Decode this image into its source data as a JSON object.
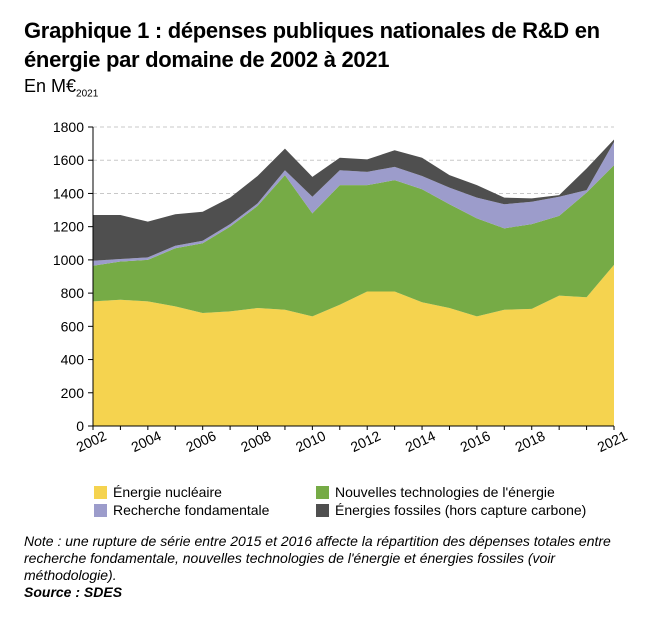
{
  "title": "Graphique 1 : dépenses publiques nationales de R&D en énergie par domaine de 2002 à 2021",
  "unit": "En M€",
  "unit_sub": "2021",
  "chart_data": {
    "type": "area",
    "stacked": true,
    "x": [
      2002,
      2003,
      2004,
      2005,
      2006,
      2007,
      2008,
      2009,
      2010,
      2011,
      2012,
      2013,
      2014,
      2015,
      2016,
      2017,
      2018,
      2019,
      2020,
      2021
    ],
    "x_tick_labels": [
      "2002",
      "2004",
      "2006",
      "2008",
      "2010",
      "2012",
      "2014",
      "2016",
      "2018",
      "2021"
    ],
    "ylim": [
      0,
      1800
    ],
    "y_ticks": [
      0,
      200,
      400,
      600,
      800,
      1000,
      1200,
      1400,
      1600,
      1800
    ],
    "grid": "horizontal dashed",
    "legend_position": "bottom",
    "series": [
      {
        "name": "Énergie nucléaire",
        "color": "#f5d34f",
        "values": [
          750,
          760,
          750,
          720,
          680,
          690,
          710,
          700,
          660,
          730,
          810,
          810,
          745,
          710,
          660,
          700,
          705,
          785,
          775,
          970
        ]
      },
      {
        "name": "Nouvelles technologies de l'énergie",
        "color": "#76ab46",
        "values": [
          215,
          230,
          250,
          350,
          420,
          510,
          615,
          810,
          620,
          720,
          640,
          670,
          680,
          625,
          590,
          490,
          510,
          480,
          630,
          600
        ]
      },
      {
        "name": "Recherche fondamentale",
        "color": "#9c9ccb",
        "values": [
          30,
          15,
          15,
          15,
          15,
          15,
          15,
          30,
          100,
          90,
          80,
          80,
          80,
          100,
          125,
          145,
          135,
          115,
          15,
          140
        ]
      },
      {
        "name": "Énergies fossiles (hors capture carbone)",
        "color": "#4f4f4f",
        "values": [
          275,
          265,
          215,
          190,
          175,
          160,
          165,
          130,
          120,
          75,
          75,
          100,
          110,
          75,
          75,
          40,
          20,
          10,
          130,
          15
        ]
      }
    ]
  },
  "note_label": "Note :",
  "note_text": "une rupture de série entre 2015 et 2016 affecte la répartition des dépenses totales entre recherche fondamentale, nouvelles technologies de l'énergie et énergies fossiles (voir méthodologie).",
  "source_label": "Source :",
  "source_text": "SDES"
}
